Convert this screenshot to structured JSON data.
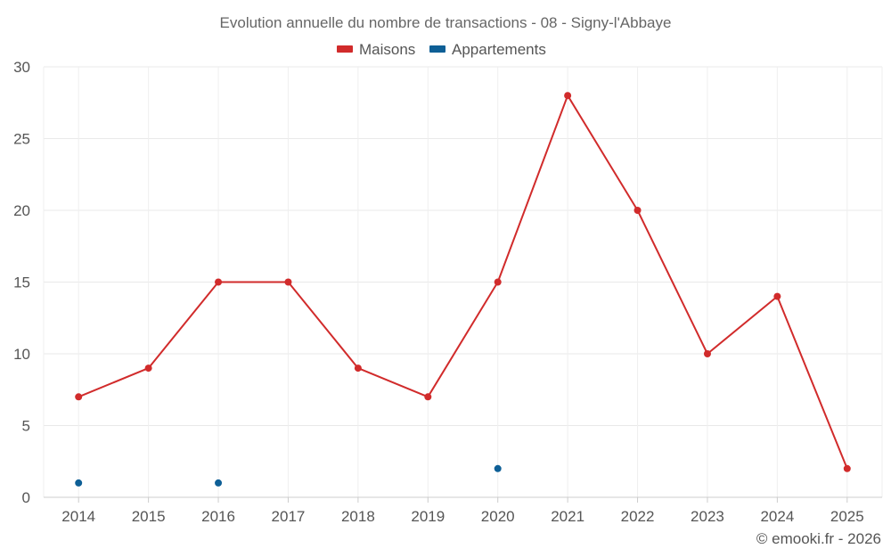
{
  "chart_data": {
    "type": "line",
    "title": "Evolution annuelle du nombre de transactions - 08 - Signy-l'Abbaye",
    "xlabel": "",
    "ylabel": "",
    "categories": [
      "2014",
      "2015",
      "2016",
      "2017",
      "2018",
      "2019",
      "2020",
      "2021",
      "2022",
      "2023",
      "2024",
      "2025"
    ],
    "ylim": [
      0,
      30
    ],
    "yticks": [
      0,
      5,
      10,
      15,
      20,
      25,
      30
    ],
    "grid": true,
    "legend_position": "top-center",
    "series": [
      {
        "name": "Maisons",
        "color": "#d12b2b",
        "style": "line-with-markers",
        "values": [
          7,
          9,
          15,
          15,
          9,
          7,
          15,
          28,
          20,
          10,
          14,
          2
        ]
      },
      {
        "name": "Appartements",
        "color": "#0e5f96",
        "style": "markers-only",
        "values": [
          1,
          null,
          1,
          null,
          null,
          null,
          2,
          null,
          null,
          null,
          null,
          null
        ]
      }
    ],
    "credit": "© emooki.fr - 2026"
  }
}
